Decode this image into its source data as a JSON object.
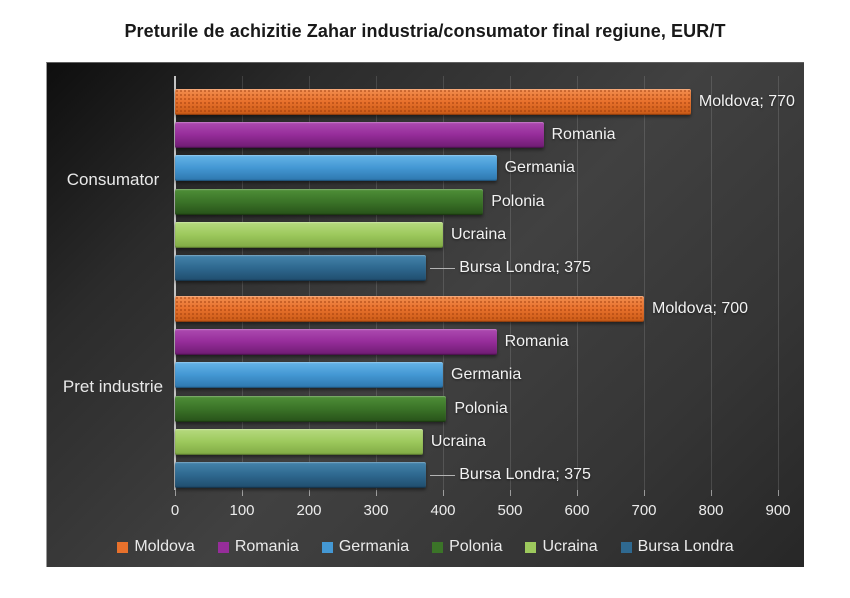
{
  "title": "Preturile de achizitie Zahar industria/consumator final regiune, EUR/T",
  "colors": {
    "page_background": "#ffffff",
    "chart_background_center": "#414141",
    "chart_background_edge": "#0e0e0e",
    "axis_line": "#c3c3c3",
    "text_light": "#ececec",
    "title_text": "#191919"
  },
  "chart_data": {
    "type": "bar",
    "orientation": "horizontal",
    "title": "Preturile de achizitie Zahar industria/consumator final regiune, EUR/T",
    "xlabel": "",
    "ylabel": "",
    "xlim": [
      0,
      900
    ],
    "x_ticks": [
      "0",
      "100",
      "200",
      "300",
      "400",
      "500",
      "600",
      "700",
      "800",
      "900"
    ],
    "grid": "vertical",
    "legend_position": "bottom",
    "categories": [
      "Consumator",
      "Pret industrie"
    ],
    "series": [
      {
        "name": "Moldova",
        "values": [
          770,
          700
        ],
        "fill": "#e8712c",
        "fill_top": "#f28e50",
        "fill_bottom": "#c95a16",
        "pattern": "dots"
      },
      {
        "name": "Romania",
        "values": [
          550,
          480
        ],
        "fill": "#962d9a",
        "fill_top": "#ad4bb1",
        "fill_bottom": "#6d1b71",
        "pattern": "solid"
      },
      {
        "name": "Germania",
        "values": [
          480,
          400
        ],
        "fill": "#4498d4",
        "fill_top": "#66b4e7",
        "fill_bottom": "#2d76ad",
        "pattern": "solid"
      },
      {
        "name": "Polonia",
        "values": [
          460,
          405
        ],
        "fill": "#3b7428",
        "fill_top": "#4f8f38",
        "fill_bottom": "#275119",
        "pattern": "solid"
      },
      {
        "name": "Ucraina",
        "values": [
          400,
          370
        ],
        "fill": "#9dc95d",
        "fill_top": "#b6da7f",
        "fill_bottom": "#7fa943",
        "pattern": "solid"
      },
      {
        "name": "Bursa Londra",
        "values": [
          375,
          375
        ],
        "fill": "#2f6990",
        "fill_top": "#4584ab",
        "fill_bottom": "#1f4c6c",
        "pattern": "solid"
      }
    ],
    "data_labels": [
      [
        {
          "text": "Moldova; 770",
          "leader": false
        },
        {
          "text": "Romania",
          "leader": false
        },
        {
          "text": "Germania",
          "leader": false
        },
        {
          "text": "Polonia",
          "leader": false
        },
        {
          "text": "Ucraina",
          "leader": false
        },
        {
          "text": "Bursa Londra; 375",
          "leader": true
        }
      ],
      [
        {
          "text": "Moldova; 700",
          "leader": false
        },
        {
          "text": "Romania",
          "leader": false
        },
        {
          "text": "Germania",
          "leader": false
        },
        {
          "text": "Polonia",
          "leader": false
        },
        {
          "text": "Ucraina",
          "leader": false
        },
        {
          "text": "Bursa Londra; 375",
          "leader": true
        }
      ]
    ],
    "legend": [
      "Moldova",
      "Romania",
      "Germania",
      "Polonia",
      "Ucraina",
      "Bursa Londra"
    ]
  }
}
